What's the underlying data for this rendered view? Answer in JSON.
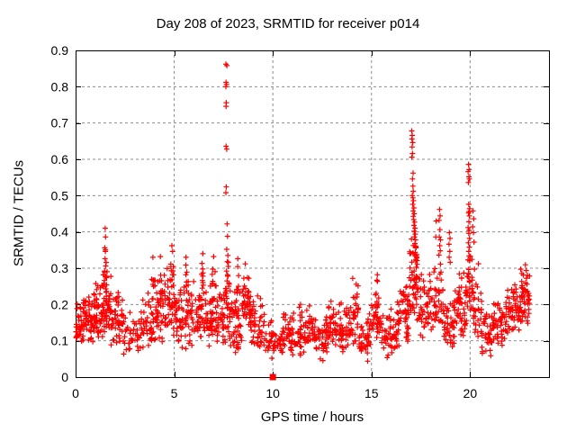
{
  "chart_data": {
    "type": "scatter",
    "title": "Day 208 of 2023, SRMTID for receiver p014",
    "xlabel": "GPS time / hours",
    "ylabel": "SRMTID / TECUs",
    "xlim": [
      0,
      24
    ],
    "ylim": [
      0,
      0.9
    ],
    "xticks": [
      0,
      5,
      10,
      15,
      20
    ],
    "xtick_labels": [
      "0",
      "5",
      "10",
      "15",
      "20"
    ],
    "yticks": [
      0,
      0.1,
      0.2,
      0.3,
      0.4,
      0.5,
      0.6,
      0.7,
      0.8,
      0.9
    ],
    "ytick_labels": [
      "0",
      "0.1",
      "0.2",
      "0.3",
      "0.4",
      "0.5",
      "0.6",
      "0.7",
      "0.8",
      "0.9"
    ],
    "grid": "dashed",
    "legend": "none",
    "marker": {
      "shape": "plus",
      "color": "#ff0000",
      "size": 7
    },
    "special_points": [
      {
        "x": 10.0,
        "y": 0.0,
        "shape": "filled-square",
        "color": "#ff0000"
      }
    ],
    "outlier_points": [
      [
        7.62,
        0.862
      ],
      [
        7.67,
        0.858
      ],
      [
        7.63,
        0.812
      ],
      [
        7.65,
        0.806
      ],
      [
        7.62,
        0.8
      ],
      [
        7.64,
        0.756
      ],
      [
        7.63,
        0.746
      ],
      [
        7.63,
        0.636
      ],
      [
        7.66,
        0.628
      ],
      [
        7.64,
        0.524
      ],
      [
        7.62,
        0.508
      ],
      [
        7.68,
        0.422
      ],
      [
        7.7,
        0.388
      ],
      [
        7.66,
        0.352
      ],
      [
        7.72,
        0.335
      ],
      [
        7.69,
        0.318
      ],
      [
        7.74,
        0.305
      ],
      [
        7.65,
        0.292
      ],
      [
        7.71,
        0.278
      ],
      [
        7.68,
        0.265
      ],
      [
        17.04,
        0.678
      ],
      [
        17.07,
        0.666
      ],
      [
        17.05,
        0.656
      ],
      [
        17.09,
        0.646
      ],
      [
        17.06,
        0.634
      ],
      [
        17.08,
        0.616
      ],
      [
        17.05,
        0.606
      ],
      [
        17.11,
        0.562
      ],
      [
        17.08,
        0.546
      ],
      [
        17.1,
        0.526
      ],
      [
        17.12,
        0.512
      ],
      [
        17.07,
        0.5
      ],
      [
        17.1,
        0.494
      ],
      [
        17.13,
        0.486
      ],
      [
        17.09,
        0.476
      ],
      [
        17.15,
        0.466
      ],
      [
        17.11,
        0.458
      ],
      [
        17.17,
        0.45
      ],
      [
        17.12,
        0.443
      ],
      [
        17.14,
        0.434
      ],
      [
        17.19,
        0.427
      ],
      [
        17.15,
        0.418
      ],
      [
        17.21,
        0.41
      ],
      [
        17.17,
        0.402
      ],
      [
        17.22,
        0.394
      ],
      [
        17.18,
        0.386
      ],
      [
        17.24,
        0.378
      ],
      [
        17.2,
        0.368
      ],
      [
        17.26,
        0.356
      ],
      [
        17.22,
        0.344
      ],
      [
        17.28,
        0.332
      ],
      [
        17.24,
        0.32
      ],
      [
        19.92,
        0.586
      ],
      [
        19.95,
        0.572
      ],
      [
        19.9,
        0.566
      ],
      [
        19.94,
        0.552
      ],
      [
        19.96,
        0.546
      ],
      [
        19.91,
        0.536
      ],
      [
        19.93,
        0.476
      ],
      [
        19.97,
        0.464
      ],
      [
        19.95,
        0.456
      ],
      [
        19.92,
        0.452
      ],
      [
        19.96,
        0.444
      ],
      [
        19.94,
        0.428
      ],
      [
        19.9,
        0.412
      ],
      [
        19.95,
        0.404
      ],
      [
        19.93,
        0.396
      ],
      [
        19.97,
        0.382
      ],
      [
        19.91,
        0.37
      ],
      [
        19.96,
        0.358
      ],
      [
        19.93,
        0.346
      ],
      [
        19.95,
        0.334
      ],
      [
        18.45,
        0.462
      ],
      [
        18.48,
        0.444
      ],
      [
        18.43,
        0.432
      ],
      [
        18.47,
        0.406
      ],
      [
        18.44,
        0.386
      ],
      [
        18.5,
        0.378
      ],
      [
        18.46,
        0.362
      ],
      [
        18.49,
        0.348
      ],
      [
        18.42,
        0.336
      ],
      [
        18.28,
        0.43
      ],
      [
        18.26,
        0.386
      ],
      [
        18.95,
        0.398
      ],
      [
        18.98,
        0.382
      ],
      [
        18.93,
        0.366
      ],
      [
        18.97,
        0.346
      ],
      [
        18.94,
        0.33
      ],
      [
        18.99,
        0.316
      ],
      [
        1.5,
        0.41
      ],
      [
        1.52,
        0.386
      ],
      [
        1.48,
        0.356
      ],
      [
        1.51,
        0.346
      ],
      [
        1.49,
        0.326
      ],
      [
        1.53,
        0.306
      ],
      [
        1.47,
        0.292
      ],
      [
        1.52,
        0.276
      ],
      [
        20.15,
        0.458
      ],
      [
        20.18,
        0.436
      ],
      [
        20.13,
        0.414
      ],
      [
        20.17,
        0.398
      ],
      [
        20.2,
        0.372
      ],
      [
        3.92,
        0.33
      ],
      [
        4.3,
        0.332
      ],
      [
        4.88,
        0.362
      ],
      [
        4.92,
        0.346
      ],
      [
        5.6,
        0.33
      ],
      [
        6.45,
        0.34
      ],
      [
        7.0,
        0.332
      ],
      [
        8.22,
        0.326
      ],
      [
        8.6,
        0.312
      ],
      [
        15.3,
        0.282
      ],
      [
        14.05,
        0.272
      ]
    ],
    "cluster_seed": 1375,
    "clusters_format": [
      "x_start",
      "x_end",
      "count",
      "y_min",
      "y_mode",
      "y_max"
    ],
    "clusters": [
      [
        0.0,
        0.4,
        38,
        0.09,
        0.14,
        0.21
      ],
      [
        0.4,
        0.9,
        45,
        0.09,
        0.15,
        0.24
      ],
      [
        0.9,
        1.3,
        42,
        0.1,
        0.16,
        0.27
      ],
      [
        1.3,
        1.8,
        55,
        0.1,
        0.17,
        0.3
      ],
      [
        1.44,
        1.58,
        10,
        0.2,
        0.26,
        0.36
      ],
      [
        1.8,
        2.4,
        48,
        0.08,
        0.15,
        0.25
      ],
      [
        2.4,
        3.3,
        42,
        0.05,
        0.11,
        0.19
      ],
      [
        3.3,
        3.9,
        40,
        0.06,
        0.13,
        0.24
      ],
      [
        3.85,
        4.0,
        6,
        0.18,
        0.24,
        0.31
      ],
      [
        3.9,
        4.45,
        40,
        0.08,
        0.16,
        0.28
      ],
      [
        4.25,
        4.4,
        7,
        0.2,
        0.25,
        0.32
      ],
      [
        4.45,
        5.2,
        58,
        0.1,
        0.18,
        0.31
      ],
      [
        4.82,
        4.98,
        10,
        0.22,
        0.28,
        0.36
      ],
      [
        5.2,
        6.0,
        58,
        0.07,
        0.16,
        0.28
      ],
      [
        5.52,
        5.72,
        8,
        0.2,
        0.26,
        0.33
      ],
      [
        6.0,
        6.7,
        50,
        0.07,
        0.15,
        0.27
      ],
      [
        6.38,
        6.52,
        9,
        0.2,
        0.27,
        0.34
      ],
      [
        6.7,
        7.3,
        48,
        0.08,
        0.15,
        0.27
      ],
      [
        6.92,
        7.08,
        9,
        0.2,
        0.26,
        0.33
      ],
      [
        7.3,
        7.95,
        50,
        0.08,
        0.15,
        0.26
      ],
      [
        7.58,
        7.82,
        10,
        0.2,
        0.26,
        0.34
      ],
      [
        7.95,
        8.45,
        40,
        0.06,
        0.13,
        0.24
      ],
      [
        8.15,
        8.3,
        7,
        0.18,
        0.24,
        0.31
      ],
      [
        8.45,
        8.9,
        45,
        0.12,
        0.19,
        0.3
      ],
      [
        8.9,
        9.6,
        45,
        0.06,
        0.13,
        0.24
      ],
      [
        9.6,
        10.5,
        50,
        0.05,
        0.09,
        0.16
      ],
      [
        10.5,
        11.3,
        50,
        0.05,
        0.1,
        0.19
      ],
      [
        11.3,
        12.1,
        50,
        0.05,
        0.11,
        0.21
      ],
      [
        11.8,
        12.0,
        6,
        0.12,
        0.16,
        0.21
      ],
      [
        12.1,
        12.7,
        40,
        0.04,
        0.09,
        0.17
      ],
      [
        12.7,
        13.3,
        45,
        0.06,
        0.12,
        0.22
      ],
      [
        13.3,
        13.9,
        45,
        0.06,
        0.12,
        0.23
      ],
      [
        13.9,
        14.35,
        35,
        0.08,
        0.15,
        0.27
      ],
      [
        14.35,
        15.0,
        45,
        0.04,
        0.1,
        0.18
      ],
      [
        15.0,
        15.55,
        35,
        0.07,
        0.13,
        0.26
      ],
      [
        15.2,
        15.38,
        7,
        0.14,
        0.19,
        0.28
      ],
      [
        15.55,
        16.3,
        50,
        0.05,
        0.11,
        0.2
      ],
      [
        16.3,
        16.9,
        45,
        0.08,
        0.15,
        0.26
      ],
      [
        16.6,
        16.8,
        7,
        0.14,
        0.19,
        0.27
      ],
      [
        16.9,
        17.35,
        55,
        0.15,
        0.24,
        0.4
      ],
      [
        17.35,
        18.2,
        55,
        0.1,
        0.17,
        0.31
      ],
      [
        18.2,
        18.65,
        35,
        0.12,
        0.19,
        0.33
      ],
      [
        18.65,
        19.2,
        40,
        0.06,
        0.13,
        0.24
      ],
      [
        19.2,
        19.8,
        45,
        0.1,
        0.16,
        0.29
      ],
      [
        19.35,
        19.5,
        6,
        0.16,
        0.22,
        0.3
      ],
      [
        19.8,
        20.1,
        30,
        0.15,
        0.23,
        0.37
      ],
      [
        20.1,
        20.6,
        35,
        0.1,
        0.17,
        0.32
      ],
      [
        20.6,
        21.2,
        40,
        0.05,
        0.11,
        0.2
      ],
      [
        21.2,
        21.9,
        45,
        0.07,
        0.14,
        0.24
      ],
      [
        21.9,
        22.5,
        45,
        0.1,
        0.17,
        0.29
      ],
      [
        22.5,
        23.05,
        45,
        0.12,
        0.19,
        0.31
      ],
      [
        22.6,
        23.0,
        10,
        0.18,
        0.24,
        0.31
      ]
    ]
  },
  "colors": {
    "marker": "#ff0000",
    "grid": "#8c8c8c",
    "axis": "#000000",
    "text": "#000000",
    "background": "#ffffff"
  }
}
